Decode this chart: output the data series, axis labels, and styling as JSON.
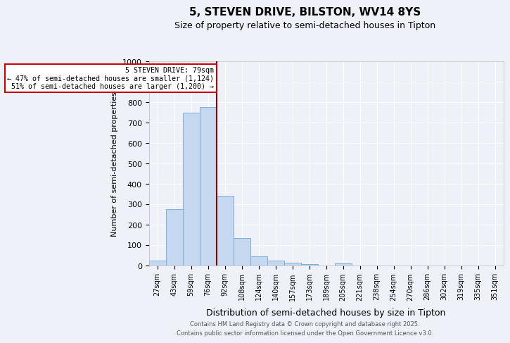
{
  "title": "5, STEVEN DRIVE, BILSTON, WV14 8YS",
  "subtitle": "Size of property relative to semi-detached houses in Tipton",
  "xlabel": "Distribution of semi-detached houses by size in Tipton",
  "ylabel": "Number of semi-detached properties",
  "categories": [
    "27sqm",
    "43sqm",
    "59sqm",
    "76sqm",
    "92sqm",
    "108sqm",
    "124sqm",
    "140sqm",
    "157sqm",
    "173sqm",
    "189sqm",
    "205sqm",
    "221sqm",
    "238sqm",
    "254sqm",
    "270sqm",
    "286sqm",
    "302sqm",
    "319sqm",
    "335sqm",
    "351sqm"
  ],
  "values": [
    25,
    275,
    750,
    775,
    340,
    133,
    46,
    24,
    13,
    8,
    0,
    10,
    0,
    0,
    0,
    0,
    0,
    0,
    0,
    0,
    0
  ],
  "bar_color": "#c5d8f0",
  "bar_edge_color": "#7aafd4",
  "property_line_color": "#8b0000",
  "annotation_text": "5 STEVEN DRIVE: 79sqm\n← 47% of semi-detached houses are smaller (1,124)\n51% of semi-detached houses are larger (1,200) →",
  "annotation_box_color": "#ffffff",
  "annotation_box_edge": "#cc0000",
  "ylim": [
    0,
    1000
  ],
  "background_color": "#eef2f8",
  "footer_line1": "Contains HM Land Registry data © Crown copyright and database right 2025.",
  "footer_line2": "Contains public sector information licensed under the Open Government Licence v3.0."
}
